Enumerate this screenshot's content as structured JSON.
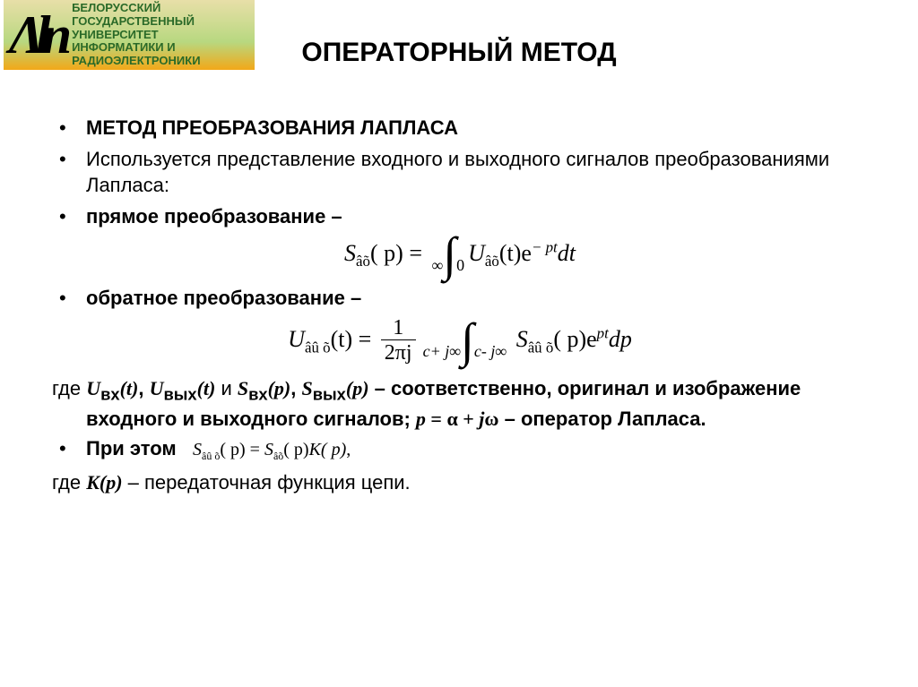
{
  "logo": {
    "glyph": "Λln",
    "text_lines": "БЕЛОРУССКИЙ\nГОСУДАРСТВЕННЫЙ\nУНИВЕРСИТЕТ\nИНФОРМАТИКИ И\nРАДИОЭЛЕКТРОНИКИ"
  },
  "title": "ОПЕРАТОРНЫЙ МЕТОД",
  "bullets": {
    "b1": "МЕТОД ПРЕОБРАЗОВАНИЯ ЛАПЛАСА",
    "b2": "Используется представление входного и выходного сигналов преобразованиями Лапласа:",
    "b3": "прямое преобразование –",
    "b4": "обратное преобразование –",
    "b5_prefix": "При этом"
  },
  "formula1": {
    "lhs_base": "S",
    "lhs_sub": "âõ",
    "lhs_arg": "( p)",
    "eq": " = ",
    "int_top": "∞",
    "int_bot": "0",
    "rhs_base": "U",
    "rhs_sub": "âõ",
    "rhs_arg": "(t)e",
    "exp": "− pt",
    "tail": "dt"
  },
  "formula2": {
    "lhs_base": "U",
    "lhs_sub": "âû õ",
    "lhs_arg": "(t)",
    "eq": " = ",
    "frac_num": "1",
    "frac_den": "2πj",
    "int_top": "c+ j∞",
    "int_bot": "c- j∞",
    "rhs_base": "S",
    "rhs_sub": "âû õ",
    "rhs_arg": "( p)e",
    "exp": "pt",
    "tail": "dp"
  },
  "para_where": {
    "w1": "где  ",
    "u_in": "U",
    "u_in_sub": "вх",
    "arg_t": "(t)",
    "sep_comma": ", ",
    "u_out": "U",
    "u_out_sub": "вых",
    "and_txt": "  и  ",
    "s_in": "S",
    "s_in_sub": "вх",
    "arg_p": "(p)",
    "sep_comma2": ",  ",
    "s_out": "S",
    "s_out_sub": "вых",
    "tail1": " – соответственно, оригинал и изображение входного и выходного сигналов; ",
    "p_eq": "p",
    "eq_txt": " = α + ",
    "j_txt": "j",
    "omega": "ω",
    "tail2": " – оператор Лапласа."
  },
  "inline_eq": {
    "s1": "S",
    "s1_sub": "âû õ",
    "arg1": "( p)",
    "eq": " = ",
    "s2": "S",
    "s2_sub": "âõ",
    "arg2": "( p)",
    "k": "K( p)",
    "comma": ","
  },
  "para_k": {
    "w1": "где ",
    "k": "K(p)",
    "tail": " – передаточная функция цепи."
  }
}
